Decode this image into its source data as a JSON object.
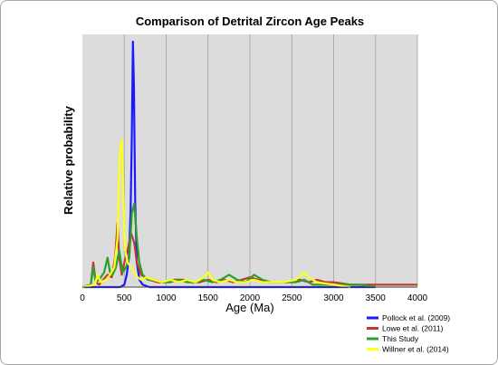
{
  "chart_data": {
    "type": "line",
    "title": "Comparison of Detrital Zircon Age Peaks",
    "xlabel": "Age (Ma)",
    "ylabel": "Relative probability",
    "xlim": [
      0,
      4000
    ],
    "ylim": [
      0,
      1
    ],
    "grid": "vertical",
    "x_ticks": [
      0,
      500,
      1000,
      1500,
      2000,
      2500,
      3000,
      3500,
      4000
    ],
    "legend_position": "bottom-right, outside plot",
    "plot_background": "#dcdcdc",
    "series": [
      {
        "name": "Pollock et al. (2009)",
        "color": "#1a1aff",
        "x": [
          0,
          450,
          500,
          530,
          555,
          575,
          590,
          603,
          615,
          630,
          650,
          680,
          720,
          800,
          1000,
          1500,
          2000,
          2100,
          2500,
          3500
        ],
        "y": [
          0,
          0,
          0.01,
          0.05,
          0.12,
          0.3,
          0.62,
          1.0,
          0.82,
          0.35,
          0.1,
          0.03,
          0.01,
          0,
          0,
          0,
          0,
          0,
          0,
          0
        ]
      },
      {
        "name": "Lowe et al. (2011)",
        "color": "#c0392b",
        "x": [
          0,
          100,
          130,
          160,
          200,
          250,
          300,
          350,
          390,
          420,
          440,
          470,
          500,
          540,
          580,
          620,
          650,
          700,
          800,
          900,
          1000,
          1100,
          1200,
          1300,
          1400,
          1500,
          1600,
          1700,
          1800,
          1900,
          2000,
          2100,
          2200,
          2400,
          2600,
          2700,
          2800,
          2900,
          3000,
          3200,
          3400,
          3600,
          3800,
          4000
        ],
        "y": [
          0,
          0.01,
          0.1,
          0.02,
          0.01,
          0.03,
          0.05,
          0.04,
          0.12,
          0.26,
          0.12,
          0.05,
          0.1,
          0.15,
          0.22,
          0.18,
          0.1,
          0.05,
          0.03,
          0.02,
          0.02,
          0.03,
          0.03,
          0.02,
          0.02,
          0.03,
          0.02,
          0.03,
          0.02,
          0.03,
          0.04,
          0.03,
          0.02,
          0.02,
          0.03,
          0.02,
          0.03,
          0.02,
          0.02,
          0.01,
          0.01,
          0.01,
          0.01,
          0.01
        ]
      },
      {
        "name": "This Study",
        "color": "#2ca02c",
        "x": [
          0,
          100,
          130,
          160,
          200,
          260,
          300,
          330,
          360,
          400,
          440,
          480,
          520,
          560,
          590,
          620,
          650,
          680,
          720,
          780,
          850,
          950,
          1050,
          1150,
          1250,
          1350,
          1450,
          1550,
          1650,
          1750,
          1850,
          1950,
          2050,
          2100,
          2150,
          2250,
          2400,
          2550,
          2650,
          2750,
          2900,
          3100,
          3300,
          3500
        ],
        "y": [
          0,
          0.01,
          0.08,
          0.02,
          0.03,
          0.06,
          0.12,
          0.06,
          0.05,
          0.08,
          0.15,
          0.06,
          0.08,
          0.12,
          0.3,
          0.34,
          0.2,
          0.1,
          0.05,
          0.03,
          0.03,
          0.02,
          0.02,
          0.03,
          0.02,
          0.02,
          0.03,
          0.02,
          0.03,
          0.05,
          0.03,
          0.02,
          0.05,
          0.04,
          0.03,
          0.02,
          0.02,
          0.02,
          0.03,
          0.01,
          0.01,
          0.01,
          0.01,
          0
        ]
      },
      {
        "name": "Willner et al. (2014)",
        "color": "#ffff1a",
        "x": [
          0,
          150,
          180,
          220,
          280,
          330,
          380,
          420,
          445,
          470,
          490,
          510,
          540,
          580,
          620,
          660,
          700,
          760,
          850,
          950,
          1050,
          1150,
          1250,
          1350,
          1450,
          1500,
          1550,
          1650,
          1750,
          1850,
          1950,
          2050,
          2150,
          2250,
          2400,
          2550,
          2650,
          2700,
          2800,
          3000,
          3200
        ],
        "y": [
          0,
          0.01,
          0.05,
          0.02,
          0.03,
          0.05,
          0.08,
          0.2,
          0.55,
          0.6,
          0.35,
          0.15,
          0.1,
          0.08,
          0.06,
          0.04,
          0.03,
          0.04,
          0.03,
          0.02,
          0.03,
          0.02,
          0.03,
          0.02,
          0.04,
          0.06,
          0.03,
          0.02,
          0.03,
          0.02,
          0.02,
          0.03,
          0.02,
          0.02,
          0.02,
          0.03,
          0.06,
          0.04,
          0.02,
          0.01,
          0
        ]
      }
    ]
  }
}
